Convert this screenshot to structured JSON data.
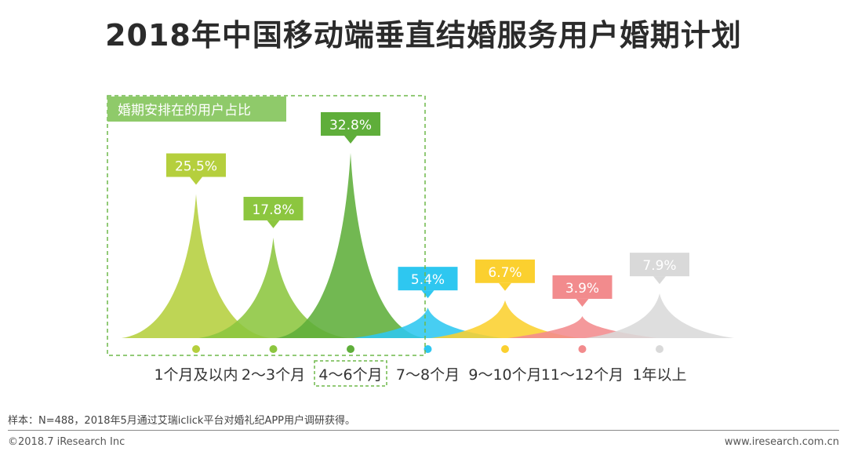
{
  "title": "2018年中国移动端垂直结婚服务用户婚期计划",
  "footer": {
    "note": "样本：N=488，2018年5月通过艾瑞iclick平台对婚礼纪APP用户调研获得。",
    "copyright": "©2018.7 iResearch Inc",
    "site": "www.iresearch.com.cn"
  },
  "chart_data": {
    "type": "area",
    "title": "2018年中国移动端垂直结婚服务用户婚期计划",
    "categories": [
      "1个月及以内",
      "2～3个月",
      "4～6个月",
      "7～8个月",
      "9～10个月",
      "11～12个月",
      "1年以上"
    ],
    "values": [
      25.5,
      17.8,
      32.8,
      5.4,
      6.7,
      3.9,
      7.9
    ],
    "value_labels": [
      "25.5%",
      "17.8%",
      "32.8%",
      "5.4%",
      "6.7%",
      "3.9%",
      "7.9%"
    ],
    "unit": "%",
    "ylim": [
      0,
      35
    ],
    "colors": [
      "#b5cf3d",
      "#8cc63f",
      "#5fae3a",
      "#2ec7f0",
      "#fbd02f",
      "#f28b8d",
      "#d9d9d9"
    ],
    "highlight_box": {
      "label": "婚期安排在的用户占比",
      "color": "#6fb84a"
    },
    "highlight_category_index": 2
  }
}
